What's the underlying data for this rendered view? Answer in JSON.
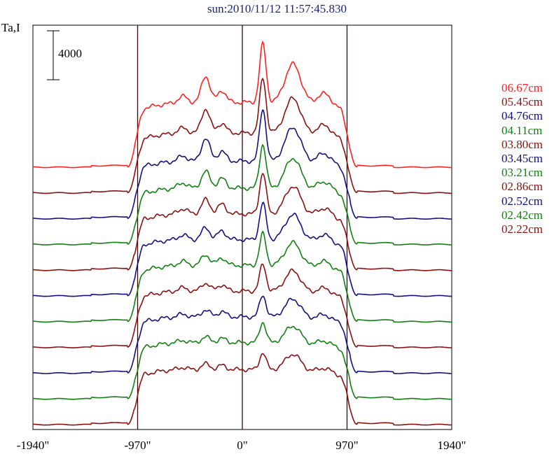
{
  "title": "sun:2010/11/12 11:57:45.830",
  "chart_data": {
    "type": "line",
    "title": "sun:2010/11/12 11:57:45.830",
    "ylabel": "Ta,I",
    "xlabel": "",
    "x_ticks": [
      "-1940\"",
      "-970\"",
      "0\"",
      "970\"",
      "1940\""
    ],
    "x_tick_values": [
      -1940,
      -970,
      0,
      970,
      1940
    ],
    "xlim": [
      -1940,
      1940
    ],
    "vertical_lines": [
      -970,
      0,
      970
    ],
    "scale_bar_label": "4000",
    "scale_bar_value": 4000,
    "grid": false,
    "legend_position": "right",
    "stacked_offset_note_shown": false,
    "series": [
      {
        "name": "06.67cm",
        "color": "#ff2020",
        "solar_level": 5300,
        "peak_center": 10100,
        "peak_left1": 7500,
        "peak_left2": 6400,
        "peak_right": 8600
      },
      {
        "name": "05.45cm",
        "color": "#8b1010",
        "solar_level": 4900,
        "peak_center": 9400,
        "peak_left1": 6900,
        "peak_left2": 5800,
        "peak_right": 7900
      },
      {
        "name": "04.76cm",
        "color": "#101080",
        "solar_level": 4700,
        "peak_center": 9000,
        "peak_left1": 6600,
        "peak_left2": 5600,
        "peak_right": 7600
      },
      {
        "name": "04.11cm",
        "color": "#108010",
        "solar_level": 4600,
        "peak_center": 8200,
        "peak_left1": 6000,
        "peak_left2": 5500,
        "peak_right": 7200
      },
      {
        "name": "03.80cm",
        "color": "#8b1010",
        "solar_level": 4600,
        "peak_center": 8000,
        "peak_left1": 5800,
        "peak_left2": 5500,
        "peak_right": 7000
      },
      {
        "name": "03.45cm",
        "color": "#101080",
        "solar_level": 4600,
        "peak_center": 7600,
        "peak_left1": 5600,
        "peak_left2": 5400,
        "peak_right": 6800
      },
      {
        "name": "03.21cm",
        "color": "#108010",
        "solar_level": 4600,
        "peak_center": 7200,
        "peak_left1": 5500,
        "peak_left2": 5300,
        "peak_right": 6600
      },
      {
        "name": "02.86cm",
        "color": "#8b1010",
        "solar_level": 4600,
        "peak_center": 6800,
        "peak_left1": 5300,
        "peak_left2": 5200,
        "peak_right": 6400
      },
      {
        "name": "02.52cm",
        "color": "#101080",
        "solar_level": 4600,
        "peak_center": 6400,
        "peak_left1": 5200,
        "peak_left2": 5100,
        "peak_right": 6200
      },
      {
        "name": "02.42cm",
        "color": "#108010",
        "solar_level": 4600,
        "peak_center": 6300,
        "peak_left1": 5100,
        "peak_left2": 5000,
        "peak_right": 6100
      },
      {
        "name": "02.22cm",
        "color": "#8b1010",
        "solar_level": 4500,
        "peak_center": 5900,
        "peak_left1": 5000,
        "peak_left2": 4900,
        "peak_right": 5900
      }
    ]
  }
}
